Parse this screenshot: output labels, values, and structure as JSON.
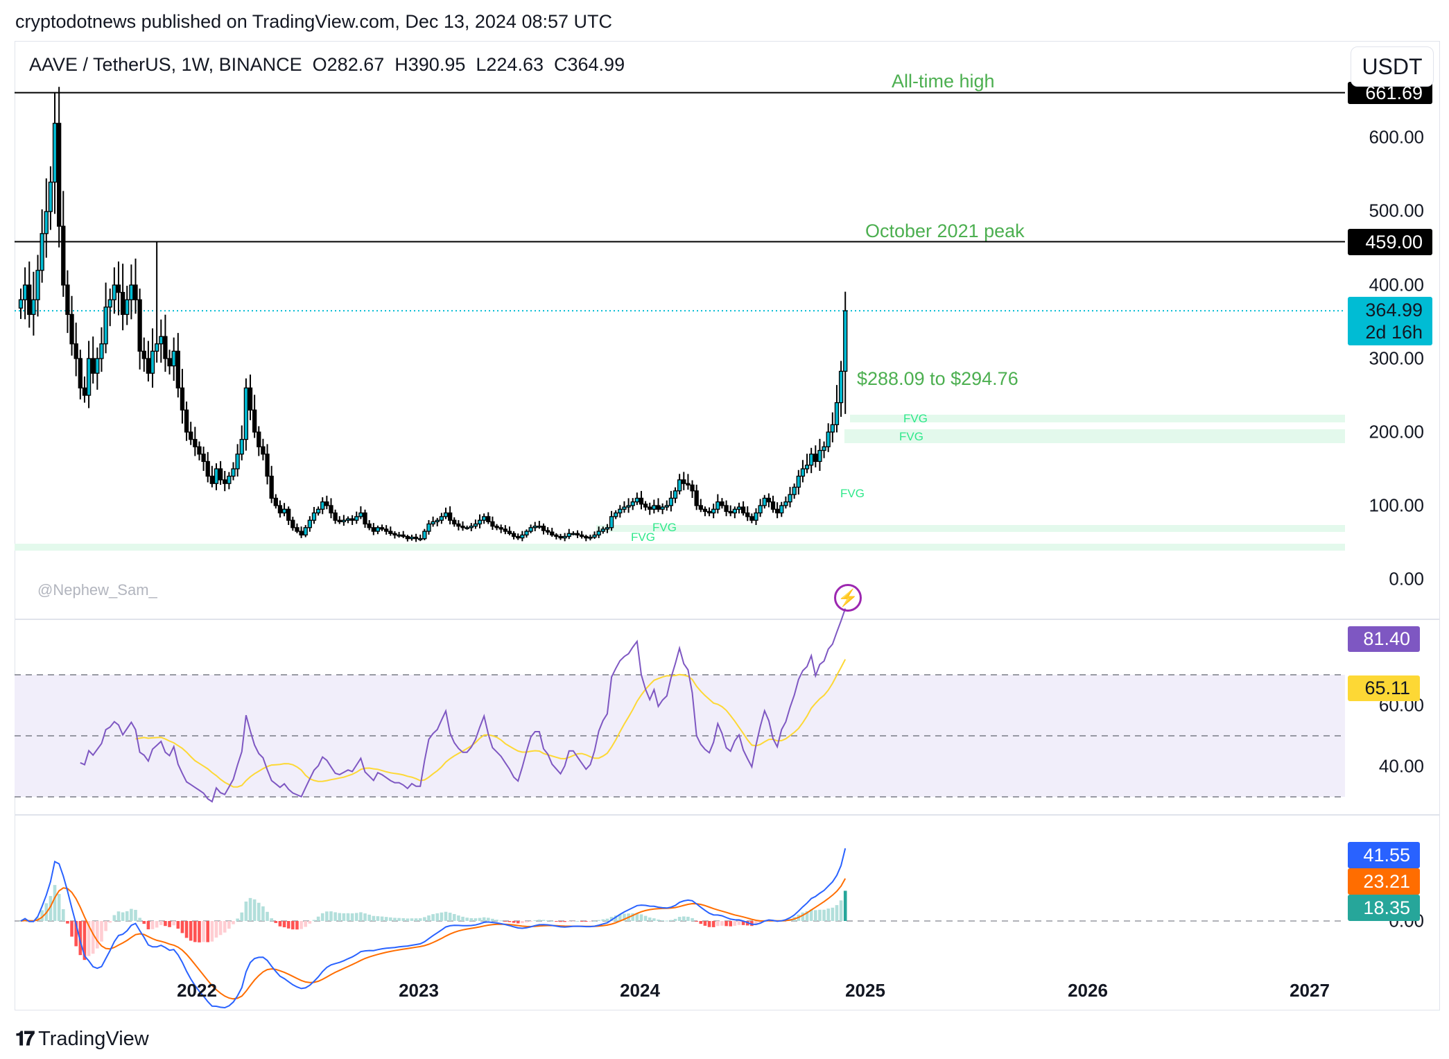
{
  "header": {
    "published": "cryptodotnews published on TradingView.com, Dec 13, 2024 08:57 UTC",
    "symbol": "AAVE / TetherUS, 1W, BINANCE",
    "open": "O282.67",
    "high": "H390.95",
    "low": "L224.63",
    "close": "C364.99",
    "currency_button": "USDT"
  },
  "annotations": {
    "ath": "All-time high",
    "oct_peak": "October 2021 peak",
    "range": "$288.09 to $294.76",
    "fvg": "FVG",
    "watermark": "@Nephew_Sam_"
  },
  "price_axis": {
    "ticks": [
      "600.00",
      "500.00",
      "400.00",
      "300.00",
      "200.00",
      "100.00",
      "0.00"
    ],
    "ath_badge": "661.69",
    "peak_badge": "459.00",
    "last_price": "364.99",
    "countdown": "2d 16h"
  },
  "rsi_axis": {
    "ticks": [
      "60.00",
      "40.00"
    ],
    "rsi_value": "81.40",
    "rsi_ma_value": "65.11"
  },
  "macd_axis": {
    "ticks": [
      "0.00"
    ],
    "macd_value": "41.55",
    "signal_value": "23.21",
    "hist_value": "18.35"
  },
  "time_axis": [
    "2022",
    "2023",
    "2024",
    "2025",
    "2026",
    "2027"
  ],
  "footer": {
    "brand": "TradingView"
  },
  "colors": {
    "up": "#00bcd4",
    "down": "#000000",
    "rsi": "#7e57c2",
    "rsi_ma": "#fdd835",
    "macd": "#2962ff",
    "signal": "#ff6d00",
    "hist_pos": "#26a69a",
    "hist_neg": "#ff5252",
    "annotation": "#4caf50",
    "fvg": "#e3f9ec"
  },
  "chart_data": {
    "type": "candlestick",
    "interval": "1W",
    "start": "2021-03",
    "price_ylim": [
      0,
      661.69
    ],
    "levels": [
      {
        "label": "All-time high",
        "value": 661.69
      },
      {
        "label": "October 2021 peak",
        "value": 459.0
      }
    ],
    "last": {
      "open": 282.67,
      "high": 390.95,
      "low": 224.63,
      "close": 364.99
    },
    "high_overrides": [
      [
        8,
        661.69
      ],
      [
        32,
        459.0
      ]
    ],
    "closes": [
      380,
      400,
      360,
      380,
      420,
      470,
      500,
      540,
      620,
      480,
      400,
      360,
      320,
      300,
      260,
      250,
      300,
      280,
      300,
      320,
      370,
      380,
      400,
      390,
      360,
      380,
      400,
      380,
      310,
      300,
      280,
      310,
      320,
      330,
      300,
      290,
      310,
      260,
      230,
      200,
      190,
      180,
      170,
      160,
      140,
      130,
      150,
      135,
      130,
      140,
      150,
      170,
      190,
      260,
      230,
      200,
      180,
      170,
      140,
      110,
      100,
      90,
      95,
      80,
      70,
      65,
      60,
      70,
      80,
      90,
      95,
      105,
      100,
      90,
      80,
      78,
      80,
      82,
      80,
      85,
      90,
      75,
      70,
      65,
      70,
      68,
      65,
      62,
      60,
      60,
      58,
      55,
      57,
      55,
      55,
      65,
      75,
      78,
      80,
      85,
      90,
      80,
      75,
      72,
      70,
      70,
      72,
      75,
      80,
      85,
      78,
      72,
      70,
      68,
      65,
      62,
      58,
      56,
      60,
      65,
      70,
      72,
      72,
      66,
      64,
      60,
      58,
      56,
      58,
      62,
      62,
      60,
      58,
      56,
      57,
      60,
      65,
      68,
      70,
      85,
      90,
      95,
      98,
      100,
      105,
      110,
      102,
      98,
      95,
      100,
      95,
      98,
      100,
      110,
      120,
      135,
      130,
      128,
      120,
      100,
      95,
      92,
      90,
      95,
      105,
      100,
      92,
      90,
      95,
      98,
      90,
      85,
      80,
      90,
      100,
      110,
      105,
      95,
      90,
      100,
      105,
      115,
      125,
      140,
      150,
      155,
      170,
      160,
      175,
      180,
      200,
      210,
      240,
      282.67,
      364.99
    ],
    "rsi": {
      "length": 14,
      "levels": [
        70,
        50,
        30
      ],
      "last": 81.4,
      "ma_last": 65.11
    },
    "macd": {
      "fast": 12,
      "slow": 26,
      "signal": 9,
      "last": 41.55,
      "signal_last": 23.21,
      "hist_last": 18.35
    },
    "fvg_zones": [
      [
        207,
        222
      ],
      [
        187,
        207
      ],
      [
        66,
        72
      ],
      [
        41,
        48
      ]
    ]
  }
}
